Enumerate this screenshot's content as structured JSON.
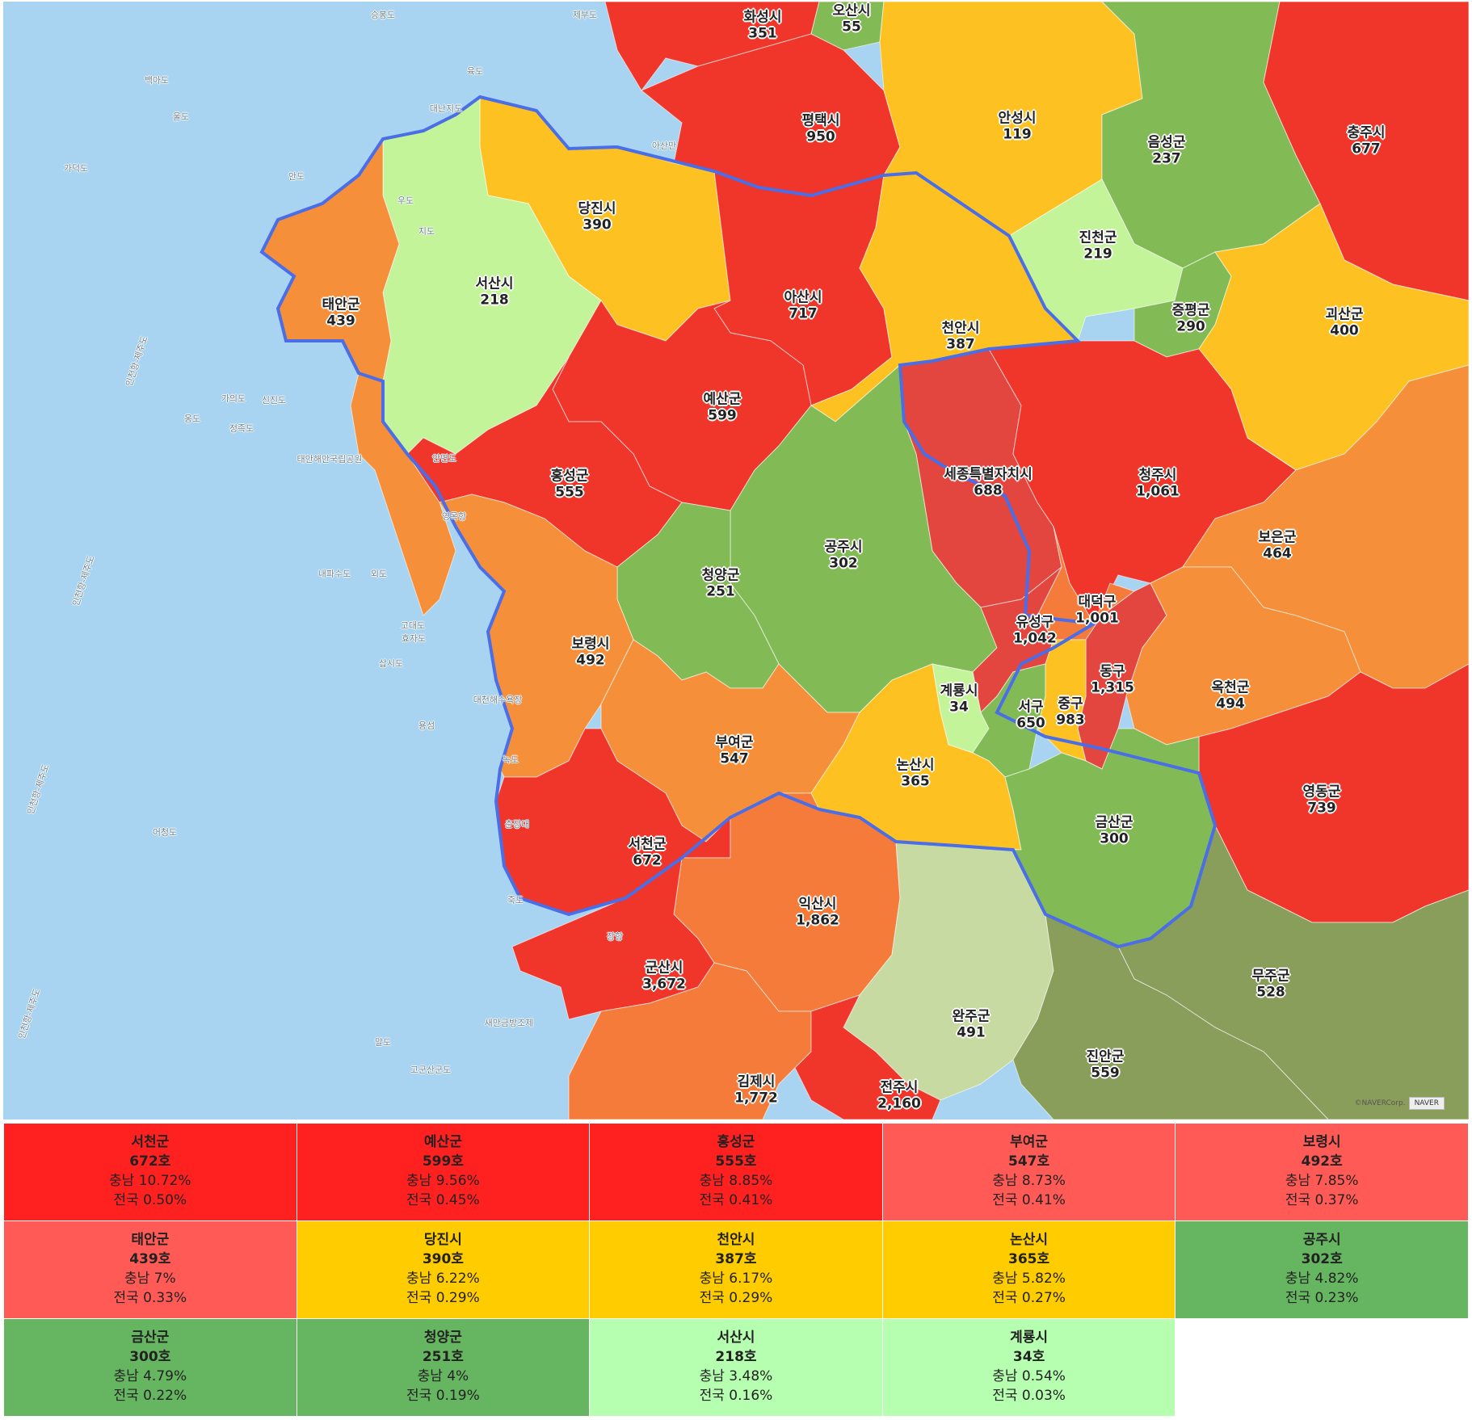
{
  "colors": {
    "sea": "#a8d3f1",
    "red": "#f0352a",
    "crimson": "#e3453f",
    "orange": "#f68f3a",
    "darkorange": "#f57b3b",
    "yellow": "#fdc221",
    "green": "#82bb55",
    "lightgreen": "#c3f49a",
    "olive": "#889e5a",
    "sage": "#c7daa1",
    "table_red": "#ff2020",
    "table_lightred": "#ff5a55",
    "table_yellow": "#ffcc00",
    "table_green": "#66b560",
    "table_lightgreen": "#b6ffb0"
  },
  "regions": [
    {
      "id": "hwaseong",
      "name": "화성시",
      "value": "351",
      "color": "red"
    },
    {
      "id": "osan",
      "name": "오산시",
      "value": "55",
      "color": "green"
    },
    {
      "id": "pyeongtaek",
      "name": "평택시",
      "value": "950",
      "color": "red"
    },
    {
      "id": "anseong",
      "name": "안성시",
      "value": "119",
      "color": "yellow"
    },
    {
      "id": "eumseong",
      "name": "음성군",
      "value": "237",
      "color": "green"
    },
    {
      "id": "chungju",
      "name": "충주시",
      "value": "677",
      "color": "red"
    },
    {
      "id": "dangjin",
      "name": "당진시",
      "value": "390",
      "color": "yellow"
    },
    {
      "id": "jincheon",
      "name": "진천군",
      "value": "219",
      "color": "lightgreen"
    },
    {
      "id": "seosan",
      "name": "서산시",
      "value": "218",
      "color": "lightgreen"
    },
    {
      "id": "taean",
      "name": "태안군",
      "value": "439",
      "color": "orange"
    },
    {
      "id": "asan",
      "name": "아산시",
      "value": "717",
      "color": "red"
    },
    {
      "id": "jeungpyeong",
      "name": "증평군",
      "value": "290",
      "color": "green"
    },
    {
      "id": "goesan",
      "name": "괴산군",
      "value": "400",
      "color": "yellow"
    },
    {
      "id": "cheonan",
      "name": "천안시",
      "value": "387",
      "color": "yellow"
    },
    {
      "id": "yesan",
      "name": "예산군",
      "value": "599",
      "color": "red"
    },
    {
      "id": "hongseong",
      "name": "홍성군",
      "value": "555",
      "color": "red"
    },
    {
      "id": "sejong",
      "name": "세종특별자치시",
      "value": "688",
      "color": "crimson"
    },
    {
      "id": "cheongju",
      "name": "청주시",
      "value": "1,061",
      "color": "red"
    },
    {
      "id": "gongju",
      "name": "공주시",
      "value": "302",
      "color": "green"
    },
    {
      "id": "boeun",
      "name": "보은군",
      "value": "464",
      "color": "orange"
    },
    {
      "id": "cheongyang",
      "name": "청양군",
      "value": "251",
      "color": "green"
    },
    {
      "id": "daedeok",
      "name": "대덕구",
      "value": "1,001",
      "color": "darkorange"
    },
    {
      "id": "yuseong",
      "name": "유성구",
      "value": "1,042",
      "color": "crimson"
    },
    {
      "id": "boryeong",
      "name": "보령시",
      "value": "492",
      "color": "orange"
    },
    {
      "id": "donggu",
      "name": "동구",
      "value": "1,315",
      "color": "crimson"
    },
    {
      "id": "okcheon",
      "name": "옥천군",
      "value": "494",
      "color": "orange"
    },
    {
      "id": "gyeryong",
      "name": "계룡시",
      "value": "34",
      "color": "lightgreen"
    },
    {
      "id": "seogu",
      "name": "서구",
      "value": "650",
      "color": "green"
    },
    {
      "id": "junggu",
      "name": "중구",
      "value": "983",
      "color": "yellow"
    },
    {
      "id": "buyeo",
      "name": "부여군",
      "value": "547",
      "color": "orange"
    },
    {
      "id": "nonsan",
      "name": "논산시",
      "value": "365",
      "color": "yellow"
    },
    {
      "id": "yeongdong",
      "name": "영동군",
      "value": "739",
      "color": "red"
    },
    {
      "id": "geumsan",
      "name": "금산군",
      "value": "300",
      "color": "green"
    },
    {
      "id": "seocheon",
      "name": "서천군",
      "value": "672",
      "color": "red"
    },
    {
      "id": "iksan",
      "name": "익산시",
      "value": "1,862",
      "color": "darkorange"
    },
    {
      "id": "gunsan",
      "name": "군산시",
      "value": "3,672",
      "color": "red"
    },
    {
      "id": "muju",
      "name": "무주군",
      "value": "528",
      "color": "olive"
    },
    {
      "id": "wanju",
      "name": "완주군",
      "value": "491",
      "color": "sage"
    },
    {
      "id": "jinan",
      "name": "진안군",
      "value": "559",
      "color": "olive"
    },
    {
      "id": "gimje",
      "name": "김제시",
      "value": "1,772",
      "color": "darkorange"
    },
    {
      "id": "jeonju",
      "name": "전주시",
      "value": "2,160",
      "color": "red"
    }
  ],
  "sea_labels": [
    "승봉도",
    "제부도",
    "백아도",
    "울도",
    "가덕도",
    "육도",
    "안도",
    "우도",
    "지도",
    "대난지도",
    "아산만",
    "가의도",
    "신진도",
    "옹도",
    "정족도",
    "태안해안국립공원",
    "안면도",
    "영목항",
    "내파수도",
    "외도",
    "고대도",
    "삽시도",
    "효자도",
    "대천해수욕장",
    "용섬",
    "녹도",
    "어청도",
    "춘장대",
    "죽도",
    "장항",
    "새만금방조제",
    "말도",
    "고군산군도",
    "인천항-제주도",
    "인천항-제주도",
    "인천항-제주도",
    "인천항-제주도"
  ],
  "attribution": {
    "copyright": "©NAVERCorp.",
    "brand": "NAVER"
  },
  "table": [
    [
      {
        "name": "서천군",
        "count": "672호",
        "prov": "충남 10.72%",
        "nat": "전국 0.50%",
        "color": "table_red"
      },
      {
        "name": "예산군",
        "count": "599호",
        "prov": "충남 9.56%",
        "nat": "전국 0.45%",
        "color": "table_red"
      },
      {
        "name": "홍성군",
        "count": "555호",
        "prov": "충남 8.85%",
        "nat": "전국 0.41%",
        "color": "table_red"
      },
      {
        "name": "부여군",
        "count": "547호",
        "prov": "충남 8.73%",
        "nat": "전국 0.41%",
        "color": "table_lightred"
      },
      {
        "name": "보령시",
        "count": "492호",
        "prov": "충남 7.85%",
        "nat": "전국 0.37%",
        "color": "table_lightred"
      }
    ],
    [
      {
        "name": "태안군",
        "count": "439호",
        "prov": "충남 7%",
        "nat": "전국 0.33%",
        "color": "table_lightred"
      },
      {
        "name": "당진시",
        "count": "390호",
        "prov": "충남 6.22%",
        "nat": "전국 0.29%",
        "color": "table_yellow"
      },
      {
        "name": "천안시",
        "count": "387호",
        "prov": "충남 6.17%",
        "nat": "전국 0.29%",
        "color": "table_yellow"
      },
      {
        "name": "논산시",
        "count": "365호",
        "prov": "충남 5.82%",
        "nat": "전국 0.27%",
        "color": "table_yellow"
      },
      {
        "name": "공주시",
        "count": "302호",
        "prov": "충남 4.82%",
        "nat": "전국 0.23%",
        "color": "table_green"
      }
    ],
    [
      {
        "name": "금산군",
        "count": "300호",
        "prov": "충남 4.79%",
        "nat": "전국 0.22%",
        "color": "table_green"
      },
      {
        "name": "청양군",
        "count": "251호",
        "prov": "충남 4%",
        "nat": "전국 0.19%",
        "color": "table_green"
      },
      {
        "name": "서산시",
        "count": "218호",
        "prov": "충남 3.48%",
        "nat": "전국 0.16%",
        "color": "table_lightgreen"
      },
      {
        "name": "계룡시",
        "count": "34호",
        "prov": "충남 0.54%",
        "nat": "전국 0.03%",
        "color": "table_lightgreen"
      },
      null
    ]
  ]
}
